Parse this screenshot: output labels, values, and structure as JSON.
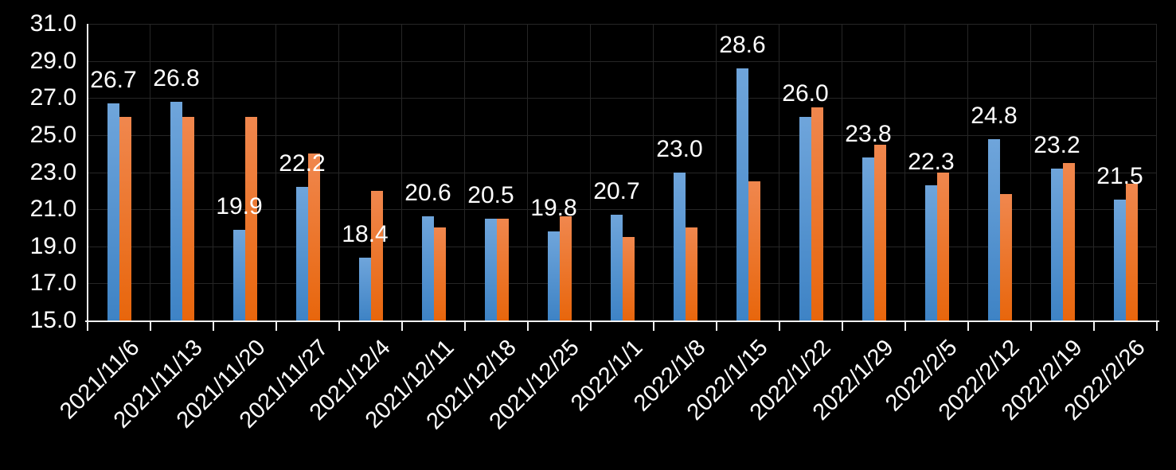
{
  "chart_data": {
    "type": "bar",
    "title": "",
    "categories": [
      "2021/11/6",
      "2021/11/13",
      "2021/11/20",
      "2021/11/27",
      "2021/12/4",
      "2021/12/11",
      "2021/12/18",
      "2021/12/25",
      "2022/1/1",
      "2022/1/8",
      "2022/1/15",
      "2022/1/22",
      "2022/1/29",
      "2022/2/5",
      "2022/2/12",
      "2022/2/19",
      "2022/2/26"
    ],
    "series": [
      {
        "name": "blue-series",
        "color": "#5B9BD5",
        "values": [
          26.7,
          26.8,
          19.9,
          22.2,
          18.4,
          20.6,
          20.5,
          19.8,
          20.7,
          23.0,
          28.6,
          26.0,
          23.8,
          22.3,
          24.8,
          23.2,
          21.5
        ],
        "data_labels": [
          "26.7",
          "26.8",
          "19.9",
          "22.2",
          "18.4",
          "20.6",
          "20.5",
          "19.8",
          "20.7",
          "23.0",
          "28.6",
          "26.0",
          "23.8",
          "22.3",
          "24.8",
          "23.2",
          "21.5"
        ]
      },
      {
        "name": "orange-series",
        "color": "#ED7D31",
        "values": [
          26.0,
          26.0,
          26.0,
          24.0,
          22.0,
          20.0,
          20.5,
          20.6,
          19.5,
          20.0,
          22.5,
          26.5,
          24.5,
          23.0,
          21.8,
          23.5,
          22.4
        ],
        "data_labels": []
      }
    ],
    "xlabel": "",
    "ylabel": "",
    "ylim": [
      15.0,
      31.0
    ],
    "ytick_step": 2.0,
    "yticks": [
      "31.0",
      "29.0",
      "27.0",
      "25.0",
      "23.0",
      "21.0",
      "19.0",
      "17.0",
      "15.0"
    ],
    "grid": true,
    "legend": "none",
    "background": "#000000",
    "text_color": "#FFFFFF",
    "gridline_color": "#262626",
    "axis_color": "#F2F2F2"
  }
}
